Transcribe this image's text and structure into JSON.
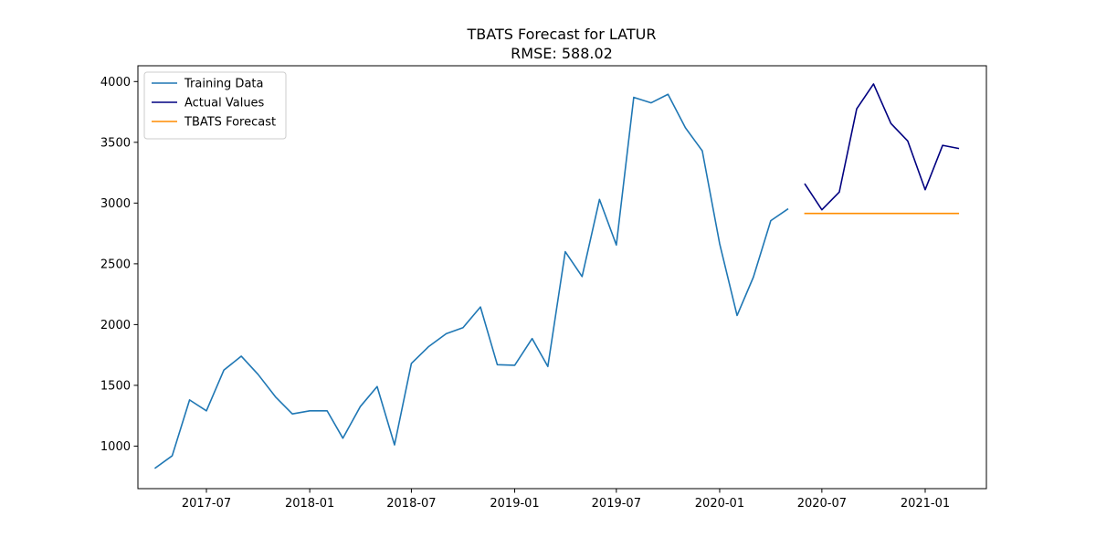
{
  "chart_data": {
    "type": "line",
    "title": "TBATS Forecast for LATUR",
    "subtitle": "RMSE: 588.02",
    "xlabel": "",
    "ylabel": "",
    "x_type": "date",
    "xlim": [
      "2017-03-01",
      "2021-04-20"
    ],
    "ylim": [
      650,
      4130
    ],
    "x_ticks": [
      {
        "date": "2017-07-01",
        "label": "2017-07"
      },
      {
        "date": "2018-01-01",
        "label": "2018-01"
      },
      {
        "date": "2018-07-01",
        "label": "2018-07"
      },
      {
        "date": "2019-01-01",
        "label": "2019-01"
      },
      {
        "date": "2019-07-01",
        "label": "2019-07"
      },
      {
        "date": "2020-01-01",
        "label": "2020-01"
      },
      {
        "date": "2020-07-01",
        "label": "2020-07"
      },
      {
        "date": "2021-01-01",
        "label": "2021-01"
      }
    ],
    "y_ticks": [
      1000,
      1500,
      2000,
      2500,
      3000,
      3500,
      4000
    ],
    "grid": false,
    "legend_position": "top-left",
    "series": [
      {
        "name": "Training Data",
        "color": "#1f77b4",
        "x": [
          "2017-04-01",
          "2017-05-01",
          "2017-06-01",
          "2017-07-01",
          "2017-08-01",
          "2017-09-01",
          "2017-10-01",
          "2017-11-01",
          "2017-12-01",
          "2018-01-01",
          "2018-02-01",
          "2018-03-01",
          "2018-04-01",
          "2018-05-01",
          "2018-06-01",
          "2018-07-01",
          "2018-08-01",
          "2018-09-01",
          "2018-10-01",
          "2018-11-01",
          "2018-12-01",
          "2019-01-01",
          "2019-02-01",
          "2019-03-01",
          "2019-04-01",
          "2019-05-01",
          "2019-06-01",
          "2019-07-01",
          "2019-08-01",
          "2019-09-01",
          "2019-10-01",
          "2019-11-01",
          "2019-12-01",
          "2020-01-01",
          "2020-02-01",
          "2020-03-01",
          "2020-04-01",
          "2020-05-01"
        ],
        "values": [
          820,
          920,
          1380,
          1290,
          1625,
          1740,
          1590,
          1405,
          1265,
          1290,
          1290,
          1065,
          1325,
          1490,
          1010,
          1680,
          1820,
          1925,
          1975,
          2145,
          1670,
          1665,
          1885,
          1655,
          2600,
          2395,
          3030,
          2655,
          3870,
          3825,
          3895,
          3620,
          3430,
          2665,
          2075,
          2390,
          2855,
          2950
        ]
      },
      {
        "name": "Actual Values",
        "color": "#000080",
        "x": [
          "2020-06-01",
          "2020-07-01",
          "2020-08-01",
          "2020-09-01",
          "2020-10-01",
          "2020-11-01",
          "2020-12-01",
          "2021-01-01",
          "2021-02-01",
          "2021-03-01"
        ],
        "values": [
          3155,
          2945,
          3090,
          3775,
          3980,
          3655,
          3510,
          3110,
          3475,
          3450
        ]
      },
      {
        "name": "TBATS Forecast",
        "color": "#ff8c00",
        "x": [
          "2020-06-01",
          "2020-07-01",
          "2020-08-01",
          "2020-09-01",
          "2020-10-01",
          "2020-11-01",
          "2020-12-01",
          "2021-01-01",
          "2021-02-01",
          "2021-03-01"
        ],
        "values": [
          2915,
          2915,
          2915,
          2915,
          2915,
          2915,
          2915,
          2915,
          2915,
          2915
        ]
      }
    ]
  }
}
